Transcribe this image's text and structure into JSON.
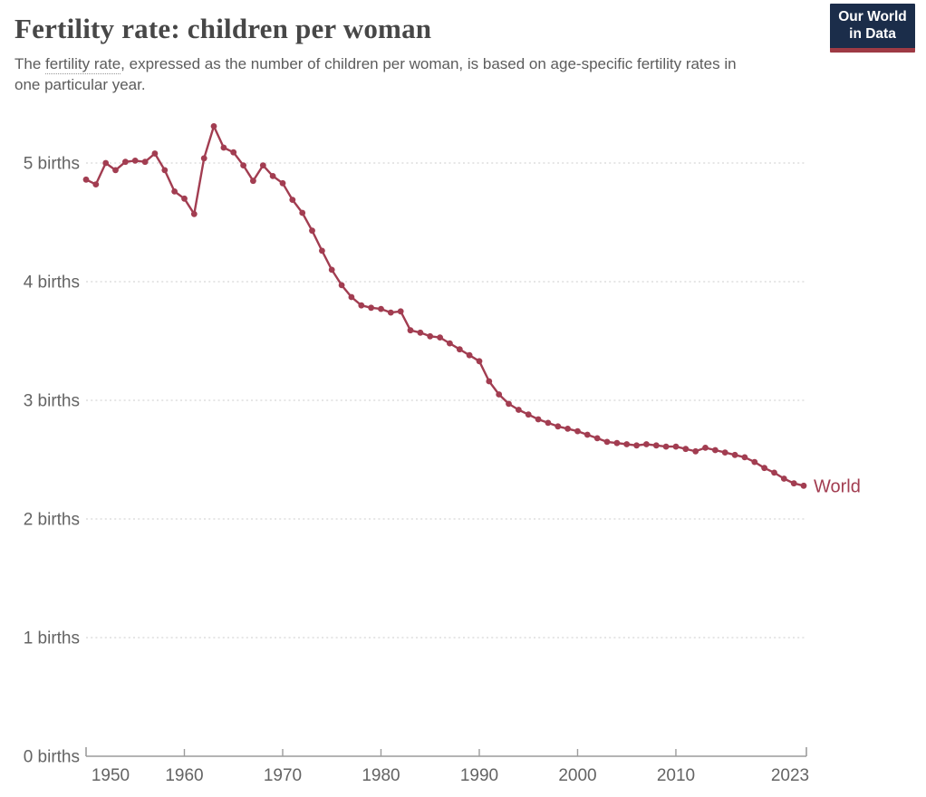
{
  "header": {
    "title": "Fertility rate: children per woman",
    "subtitle_prefix": "The ",
    "subtitle_link": "fertility rate",
    "subtitle_rest": ", expressed as the number of children per woman, is based on age-specific fertility rates in one particular year.",
    "logo": {
      "line1": "Our World",
      "line2": "in Data"
    }
  },
  "colors": {
    "line": "#a23d51",
    "world_label": "#a23d51",
    "gridline": "#d8d8d8",
    "axis": "#9c9c9c",
    "axis_text": "#646464",
    "title_text": "#474747",
    "subtitle_text": "#5c5c5c",
    "logo_bg": "#1b2d4a",
    "logo_stripe": "#9e3a44"
  },
  "chart_data": {
    "type": "line",
    "title": "Fertility rate: children per woman",
    "xlabel": "",
    "ylabel": "births",
    "xlim": [
      1950,
      2023
    ],
    "ylim": [
      0,
      5.5
    ],
    "grid": "dotted-horizontal",
    "legend_position": "end-of-line-label",
    "x_ticks": [
      1950,
      1960,
      1970,
      1980,
      1990,
      2000,
      2010,
      2023
    ],
    "y_ticks": [
      0,
      1,
      2,
      3,
      4,
      5
    ],
    "y_tick_labels": [
      "0 births",
      "1 births",
      "2 births",
      "3 births",
      "4 births",
      "5 births"
    ],
    "series": [
      {
        "name": "World",
        "end_label": "World",
        "color": "#a23d51",
        "marker": "circle",
        "x": [
          1950,
          1951,
          1952,
          1953,
          1954,
          1955,
          1956,
          1957,
          1958,
          1959,
          1960,
          1961,
          1962,
          1963,
          1964,
          1965,
          1966,
          1967,
          1968,
          1969,
          1970,
          1971,
          1972,
          1973,
          1974,
          1975,
          1976,
          1977,
          1978,
          1979,
          1980,
          1981,
          1982,
          1983,
          1984,
          1985,
          1986,
          1987,
          1988,
          1989,
          1990,
          1991,
          1992,
          1993,
          1994,
          1995,
          1996,
          1997,
          1998,
          1999,
          2000,
          2001,
          2002,
          2003,
          2004,
          2005,
          2006,
          2007,
          2008,
          2009,
          2010,
          2011,
          2012,
          2013,
          2014,
          2015,
          2016,
          2017,
          2018,
          2019,
          2020,
          2021,
          2022,
          2023
        ],
        "values": [
          4.86,
          4.82,
          5.0,
          4.94,
          5.01,
          5.02,
          5.01,
          5.08,
          4.94,
          4.76,
          4.7,
          4.57,
          5.04,
          5.31,
          5.13,
          5.09,
          4.98,
          4.85,
          4.98,
          4.89,
          4.83,
          4.69,
          4.58,
          4.43,
          4.26,
          4.1,
          3.97,
          3.87,
          3.8,
          3.78,
          3.77,
          3.74,
          3.75,
          3.59,
          3.57,
          3.54,
          3.53,
          3.48,
          3.43,
          3.38,
          3.33,
          3.16,
          3.05,
          2.97,
          2.92,
          2.88,
          2.84,
          2.81,
          2.78,
          2.76,
          2.74,
          2.71,
          2.68,
          2.65,
          2.64,
          2.63,
          2.62,
          2.63,
          2.62,
          2.61,
          2.61,
          2.59,
          2.57,
          2.6,
          2.58,
          2.56,
          2.54,
          2.52,
          2.48,
          2.43,
          2.39,
          2.34,
          2.3,
          2.28
        ]
      }
    ]
  }
}
